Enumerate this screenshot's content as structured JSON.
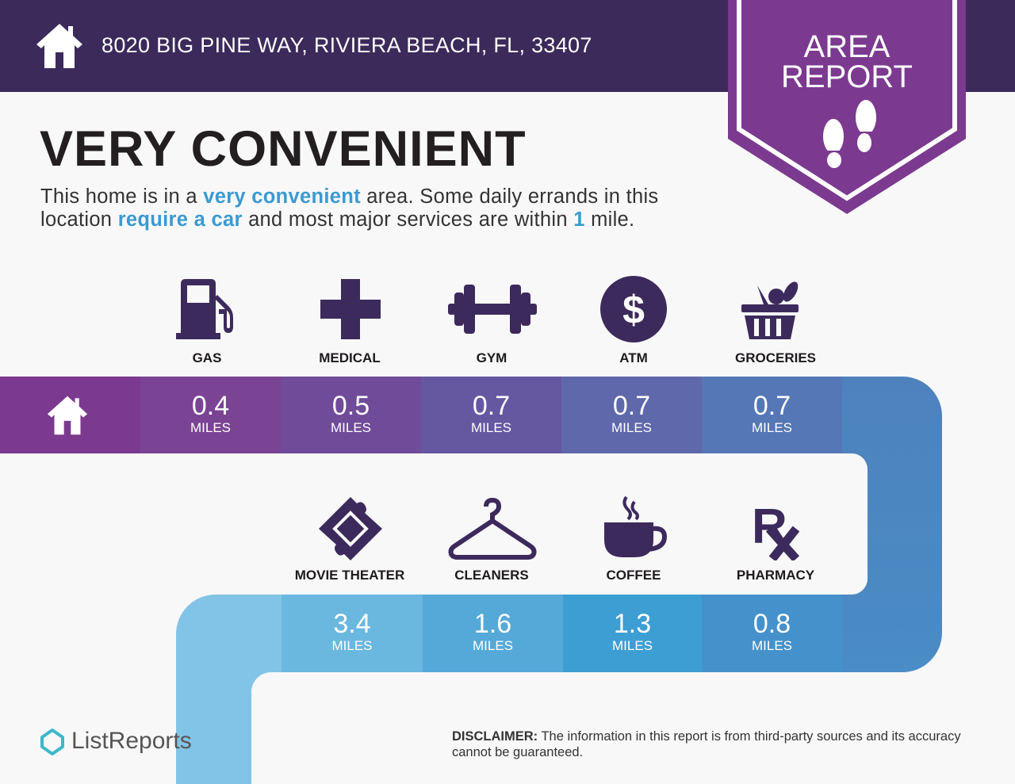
{
  "header": {
    "address": "8020 BIG PINE WAY, RIVIERA BEACH, FL, 33407",
    "home_icon": "house-icon"
  },
  "badge": {
    "line1": "AREA",
    "line2": "REPORT",
    "icon": "footprints-icon"
  },
  "title": "VERY CONVENIENT",
  "description": {
    "p1": "This home is in a ",
    "h1": "very convenient",
    "p2": " area. Some daily errands in this location ",
    "h2": "require a car",
    "p3": " and most major services are within ",
    "h3": "1",
    "p4": " mile."
  },
  "row1": [
    {
      "label": "GAS",
      "value": "0.4",
      "unit": "MILES",
      "icon": "gas-pump-icon",
      "color": "#7a4394"
    },
    {
      "label": "MEDICAL",
      "value": "0.5",
      "unit": "MILES",
      "icon": "medical-cross-icon",
      "color": "#704b99"
    },
    {
      "label": "GYM",
      "value": "0.7",
      "unit": "MILES",
      "icon": "dumbbell-icon",
      "color": "#6657a1"
    },
    {
      "label": "ATM",
      "value": "0.7",
      "unit": "MILES",
      "icon": "dollar-icon",
      "color": "#5f68ab"
    },
    {
      "label": "GROCERIES",
      "value": "0.7",
      "unit": "MILES",
      "icon": "grocery-basket-icon",
      "color": "#5577b6"
    }
  ],
  "row2": [
    {
      "label": "MOVIE THEATER",
      "value": "3.4",
      "unit": "MILES",
      "icon": "ticket-icon",
      "color": "#6ab7e0"
    },
    {
      "label": "CLEANERS",
      "value": "1.6",
      "unit": "MILES",
      "icon": "hanger-icon",
      "color": "#55a9d8"
    },
    {
      "label": "COFFEE",
      "value": "1.3",
      "unit": "MILES",
      "icon": "coffee-cup-icon",
      "color": "#3d9ed3"
    },
    {
      "label": "PHARMACY",
      "value": "0.8",
      "unit": "MILES",
      "icon": "rx-icon",
      "color": "#4591cc"
    }
  ],
  "colors": {
    "header": "#3c2a5b",
    "badge": "#7b3a8f",
    "icon": "#3d2a5c",
    "accent": "#3a9ad1"
  },
  "footer": {
    "logo": "ListReports",
    "disclaimer_label": "DISCLAIMER:",
    "disclaimer_text": " The information in this report is from third-party sources and its accuracy cannot be guaranteed."
  }
}
